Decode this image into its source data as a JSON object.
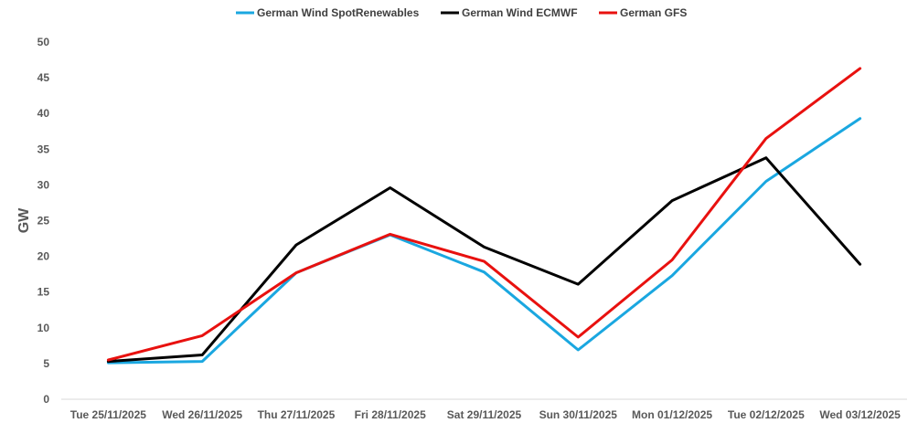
{
  "chart_data": {
    "type": "line",
    "title": "",
    "xlabel": "",
    "ylabel": "GW",
    "ylim": [
      0,
      50
    ],
    "yticks": [
      0,
      5,
      10,
      15,
      20,
      25,
      30,
      35,
      40,
      45,
      50
    ],
    "grid": false,
    "legend_position": "top-center",
    "categories": [
      "Tue 25/11/2025",
      "Wed 26/11/2025",
      "Thu 27/11/2025",
      "Fri 28/11/2025",
      "Sat 29/11/2025",
      "Sun 30/11/2025",
      "Mon 01/12/2025",
      "Tue 02/12/2025",
      "Wed 03/12/2025"
    ],
    "series": [
      {
        "name": "German Wind SpotRenewables",
        "color": "#1aa7e0",
        "values": [
          5.1,
          5.3,
          17.7,
          23.0,
          17.8,
          6.9,
          17.3,
          30.5,
          39.3
        ]
      },
      {
        "name": "German Wind ECMWF",
        "color": "#000000",
        "values": [
          5.3,
          6.2,
          21.6,
          29.6,
          21.3,
          16.1,
          27.8,
          33.8,
          18.9
        ]
      },
      {
        "name": "German GFS",
        "color": "#e8110f",
        "values": [
          5.5,
          8.9,
          17.7,
          23.1,
          19.3,
          8.7,
          19.5,
          36.5,
          46.3
        ]
      }
    ]
  }
}
